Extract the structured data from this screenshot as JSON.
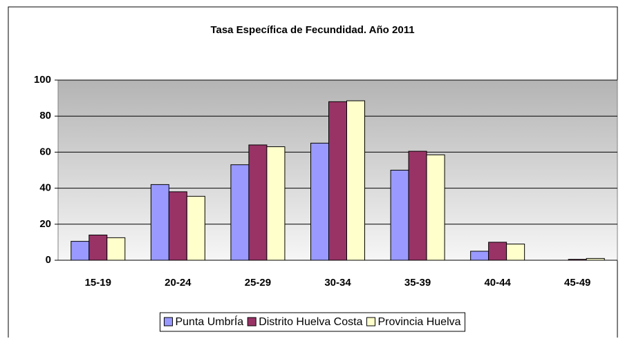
{
  "chart_data": {
    "type": "bar",
    "title": "Tasa Específica de Fecundidad. Año 2011",
    "categories": [
      "15-19",
      "20-24",
      "25-29",
      "30-34",
      "35-39",
      "40-44",
      "45-49"
    ],
    "series": [
      {
        "name": "Punta UmbrÍa",
        "color": "#9999ff",
        "values": [
          10.5,
          42,
          53,
          65,
          50,
          5,
          0
        ]
      },
      {
        "name": "Distrito Huelva Costa",
        "color": "#993366",
        "values": [
          14,
          38,
          64,
          88,
          60.5,
          10,
          0.5
        ]
      },
      {
        "name": "Provincia Huelva",
        "color": "#ffffcc",
        "values": [
          12.5,
          35.5,
          63,
          88.5,
          58.5,
          9,
          1
        ]
      }
    ],
    "ylim": [
      0,
      100
    ],
    "yticks": [
      0,
      20,
      40,
      60,
      80,
      100
    ],
    "grid": true,
    "legend": "bottom"
  }
}
